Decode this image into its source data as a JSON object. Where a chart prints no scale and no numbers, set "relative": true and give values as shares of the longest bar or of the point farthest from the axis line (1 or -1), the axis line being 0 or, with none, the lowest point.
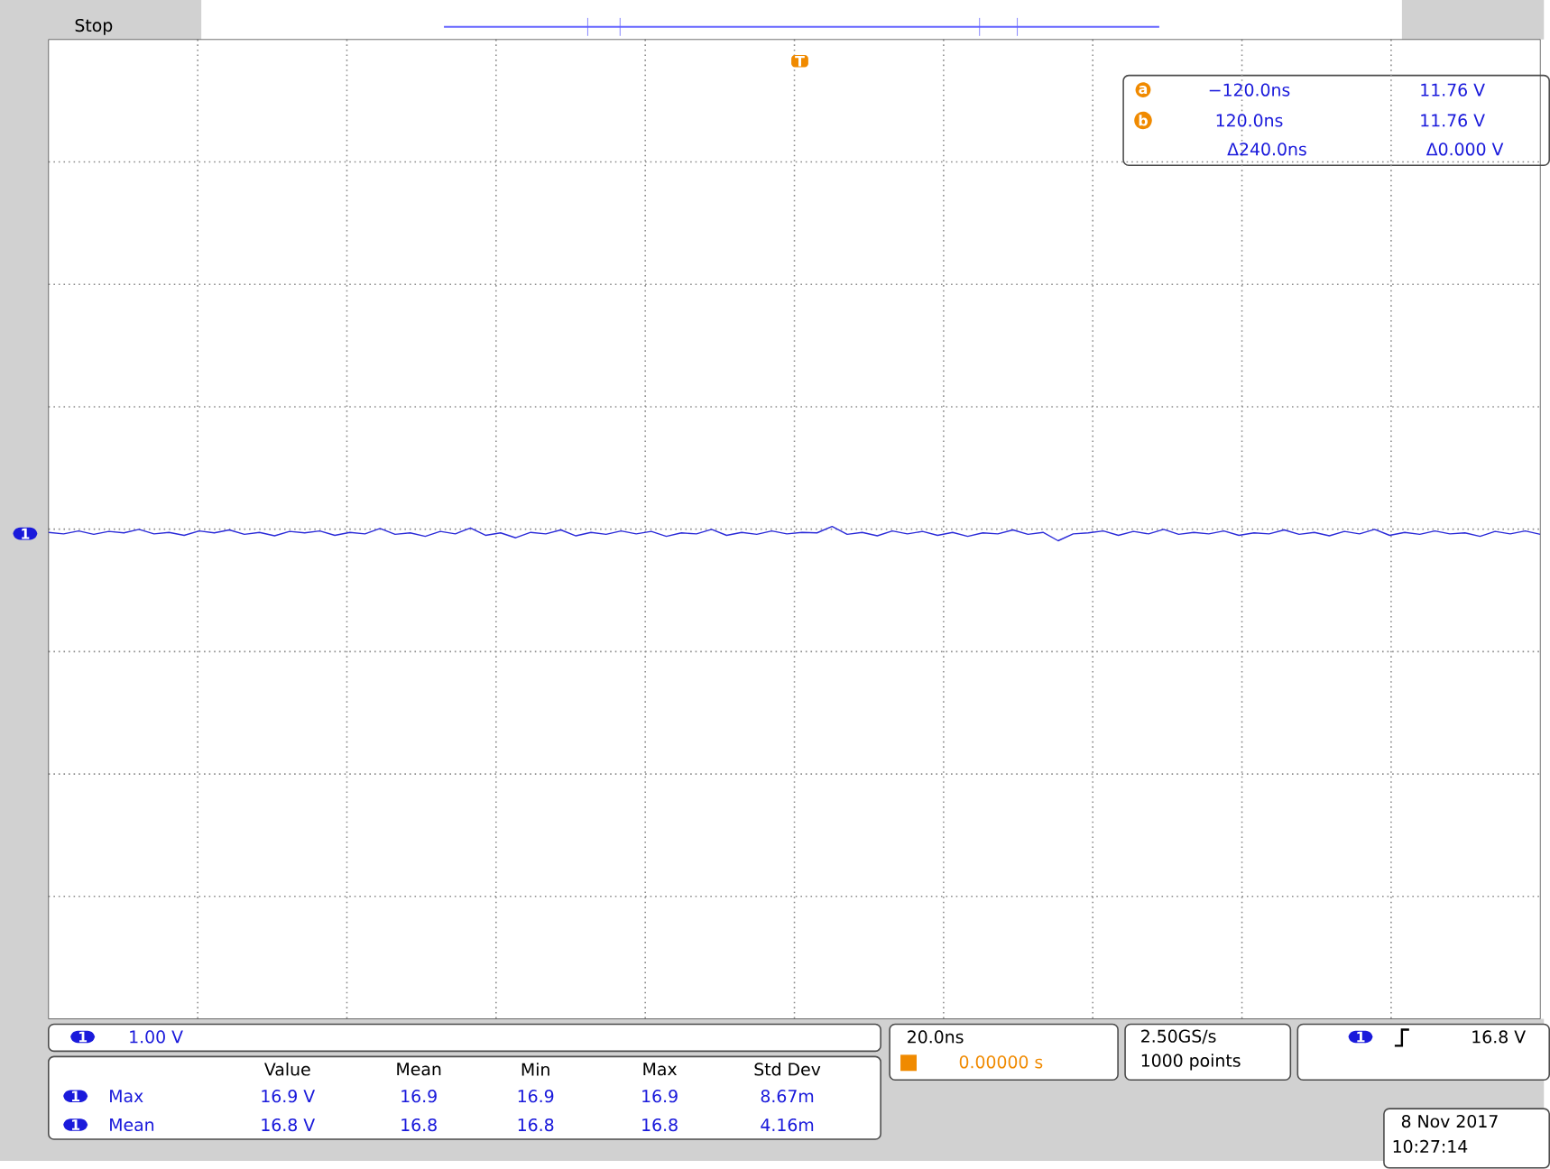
{
  "chart_data": {
    "type": "line",
    "relative": true,
    "grid": true,
    "color": "#2a2ad8",
    "categories": [
      null,
      null,
      null,
      null,
      null,
      null,
      null,
      null,
      null,
      null,
      null,
      null,
      null,
      null,
      null,
      null,
      null,
      null,
      null,
      null,
      null,
      null,
      null,
      null,
      null,
      null,
      null,
      null,
      null,
      null,
      null,
      null,
      null,
      null,
      null,
      null,
      null,
      null,
      null,
      null,
      null,
      null,
      null,
      null,
      null,
      null,
      null,
      null,
      null,
      null,
      null,
      null,
      null,
      null,
      null,
      null,
      null,
      null,
      null,
      null,
      null,
      null,
      null,
      null,
      null,
      null,
      null,
      null,
      null,
      null,
      null,
      null,
      null,
      null,
      null,
      null,
      null,
      null,
      null,
      null,
      null,
      null,
      null,
      null,
      null,
      null,
      null,
      null,
      null,
      null,
      null,
      null,
      null,
      null,
      null,
      null,
      null,
      null,
      null,
      null
    ],
    "values": [
      0.988,
      0.985,
      0.991,
      0.984,
      0.99,
      0.987,
      0.994,
      0.985,
      0.988,
      0.982,
      0.991,
      0.987,
      0.993,
      0.984,
      0.988,
      0.981,
      0.99,
      0.987,
      0.991,
      0.982,
      0.988,
      0.985,
      0.996,
      0.984,
      0.987,
      0.98,
      0.99,
      0.985,
      0.997,
      0.982,
      0.987,
      0.977,
      0.988,
      0.985,
      0.993,
      0.981,
      0.988,
      0.984,
      0.991,
      0.985,
      0.99,
      0.98,
      0.987,
      0.985,
      0.994,
      0.982,
      0.988,
      0.984,
      0.991,
      0.985,
      0.988,
      0.987,
      1,
      0.984,
      0.988,
      0.981,
      0.991,
      0.985,
      0.99,
      0.982,
      0.988,
      0.98,
      0.987,
      0.985,
      0.993,
      0.984,
      0.988,
      0.971,
      0.985,
      0.987,
      0.991,
      0.982,
      0.99,
      0.985,
      0.994,
      0.984,
      0.988,
      0.985,
      0.991,
      0.982,
      0.987,
      0.985,
      0.993,
      0.984,
      0.988,
      0.981,
      0.99,
      0.985,
      0.994,
      0.982,
      0.988,
      0.984,
      0.991,
      0.985,
      0.987,
      0.98,
      0.99,
      0.985,
      0.991,
      0.984
    ],
    "annotations": [
      "Stop",
      "1",
      "T",
      "a",
      "−120.0ns",
      "11.76 V",
      "b",
      "120.0ns",
      "11.76 V",
      "Δ240.0ns",
      "Δ0.000 V",
      "1",
      "1.00 V",
      "Value",
      "Mean",
      "Min",
      "Max",
      "Std Dev",
      "1",
      "Max",
      "16.9 V",
      "16.9",
      "16.9",
      "16.9",
      "8.67m",
      "1",
      "Mean",
      "16.8 V",
      "16.8",
      "16.8",
      "16.8",
      "4.16m",
      "20.0ns",
      "0.00000 s",
      "2.50GS/s",
      "1000 points",
      "1",
      "16.8 V",
      "8 Nov 2017",
      "10:27:14"
    ]
  }
}
